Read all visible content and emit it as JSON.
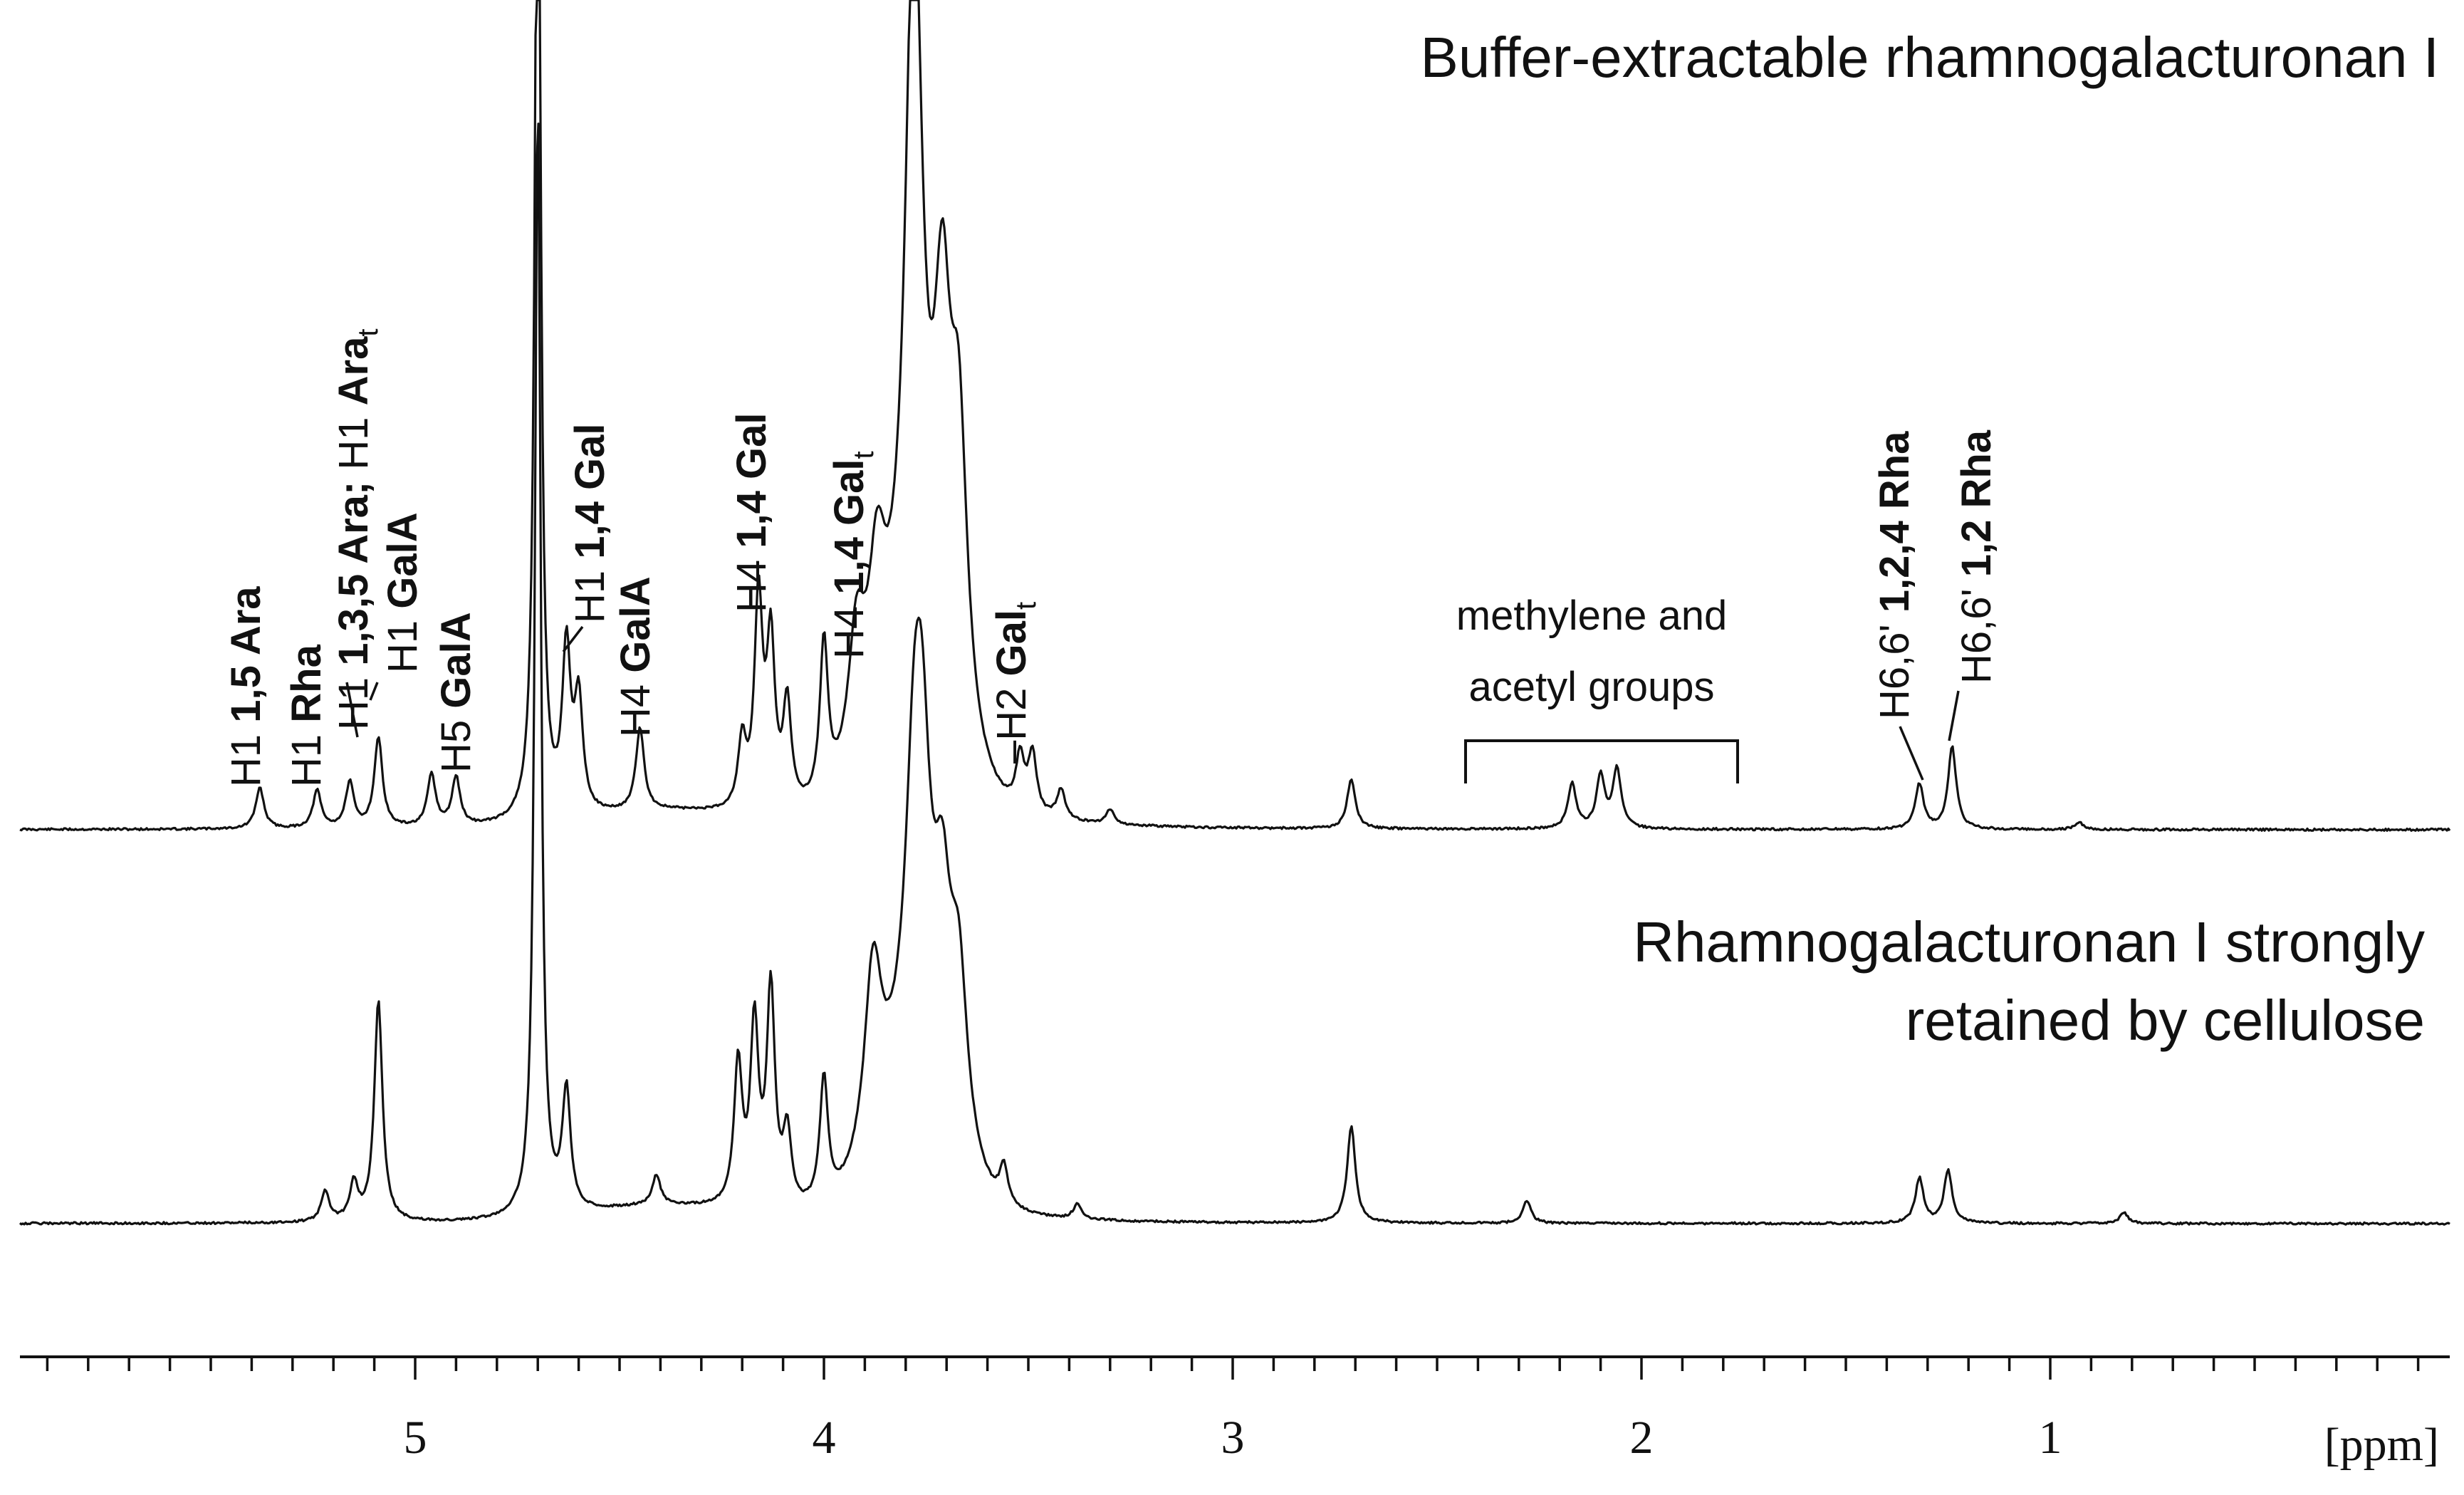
{
  "chart_data": {
    "type": "line",
    "x_unit_label": "[ppm]",
    "x_ticks": [
      5,
      4,
      3,
      2,
      1
    ],
    "x_range": [
      5.95,
      0.0
    ],
    "x_reversed": true,
    "grid": false,
    "spectra": [
      {
        "name": "Buffer-extractable rhamnogalacturonan I",
        "peaks": [
          {
            "ppm": 5.38,
            "intensity": 0.055
          },
          {
            "ppm": 5.24,
            "intensity": 0.05
          },
          {
            "ppm": 5.16,
            "intensity": 0.06
          },
          {
            "ppm": 5.09,
            "intensity": 0.12
          },
          {
            "ppm": 4.96,
            "intensity": 0.07
          },
          {
            "ppm": 4.9,
            "intensity": 0.065
          },
          {
            "ppm": 4.7,
            "intensity": 1.5
          },
          {
            "ppm": 4.63,
            "intensity": 0.22
          },
          {
            "ppm": 4.6,
            "intensity": 0.15
          },
          {
            "ppm": 4.45,
            "intensity": 0.11
          },
          {
            "ppm": 4.2,
            "intensity": 0.09
          },
          {
            "ppm": 4.16,
            "intensity": 0.28
          },
          {
            "ppm": 4.13,
            "intensity": 0.22
          },
          {
            "ppm": 4.09,
            "intensity": 0.14
          },
          {
            "ppm": 4.0,
            "intensity": 0.21
          },
          {
            "ppm": 3.92,
            "intensity": 0.18
          },
          {
            "ppm": 3.87,
            "intensity": 0.2
          },
          {
            "ppm": 3.78,
            "intensity": 1.0
          },
          {
            "ppm": 3.71,
            "intensity": 0.46
          },
          {
            "ppm": 3.67,
            "intensity": 0.38
          },
          {
            "ppm": 3.52,
            "intensity": 0.07
          },
          {
            "ppm": 3.49,
            "intensity": 0.08
          },
          {
            "ppm": 3.42,
            "intensity": 0.04
          },
          {
            "ppm": 3.3,
            "intensity": 0.02
          },
          {
            "ppm": 2.71,
            "intensity": 0.067
          },
          {
            "ppm": 2.17,
            "intensity": 0.06
          },
          {
            "ppm": 2.1,
            "intensity": 0.07
          },
          {
            "ppm": 2.06,
            "intensity": 0.08
          },
          {
            "ppm": 1.32,
            "intensity": 0.06
          },
          {
            "ppm": 1.24,
            "intensity": 0.11
          },
          {
            "ppm": 0.93,
            "intensity": 0.01
          }
        ]
      },
      {
        "name": "Rhamnogalacturonan I strongly retained by cellulose",
        "peaks": [
          {
            "ppm": 5.22,
            "intensity": 0.04
          },
          {
            "ppm": 5.15,
            "intensity": 0.05
          },
          {
            "ppm": 5.09,
            "intensity": 0.295
          },
          {
            "ppm": 4.7,
            "intensity": 1.5
          },
          {
            "ppm": 4.63,
            "intensity": 0.16
          },
          {
            "ppm": 4.41,
            "intensity": 0.04
          },
          {
            "ppm": 4.21,
            "intensity": 0.19
          },
          {
            "ppm": 4.17,
            "intensity": 0.24
          },
          {
            "ppm": 4.13,
            "intensity": 0.29
          },
          {
            "ppm": 4.09,
            "intensity": 0.1
          },
          {
            "ppm": 4.0,
            "intensity": 0.17
          },
          {
            "ppm": 3.88,
            "intensity": 0.24
          },
          {
            "ppm": 3.78,
            "intensity": 0.32
          },
          {
            "ppm": 3.76,
            "intensity": 0.34
          },
          {
            "ppm": 3.71,
            "intensity": 0.24
          },
          {
            "ppm": 3.67,
            "intensity": 0.22
          },
          {
            "ppm": 3.56,
            "intensity": 0.05
          },
          {
            "ppm": 3.38,
            "intensity": 0.02
          },
          {
            "ppm": 2.71,
            "intensity": 0.13
          },
          {
            "ppm": 2.28,
            "intensity": 0.03
          },
          {
            "ppm": 1.32,
            "intensity": 0.06
          },
          {
            "ppm": 1.25,
            "intensity": 0.07
          },
          {
            "ppm": 0.82,
            "intensity": 0.015
          }
        ]
      }
    ],
    "annotations": {
      "title_top": "Buffer-extractable rhamnogalacturonan I",
      "title_bottom_line1": "Rhamnogalacturonan I strongly",
      "title_bottom_line2": "retained by cellulose",
      "methylene_line1": "methylene and",
      "methylene_line2": "acetyl groups",
      "peak_labels": [
        {
          "ppm": 5.38,
          "pre": "H1 ",
          "bold": "1,5 Ara",
          "sub": ""
        },
        {
          "ppm": 5.24,
          "pre": "H1 ",
          "bold": "Rha",
          "sub": ""
        },
        {
          "ppm": 5.16,
          "pre": "H1 ",
          "bold": "1,3,5 Ara;",
          "mid": " H1 ",
          "bold2": "Ara",
          "sub": "t"
        },
        {
          "ppm": 5.09,
          "pre": "H1 ",
          "bold": "GalA",
          "sub": ""
        },
        {
          "ppm": 4.93,
          "pre": "H5 ",
          "bold": "GalA",
          "sub": ""
        },
        {
          "ppm": 4.63,
          "pre": "H1 ",
          "bold": "1,4 Gal",
          "sub": ""
        },
        {
          "ppm": 4.45,
          "pre": "H4 ",
          "bold": "GalA",
          "sub": ""
        },
        {
          "ppm": 4.16,
          "pre": "H4 ",
          "bold": "1,4 Gal",
          "sub": ""
        },
        {
          "ppm": 4.0,
          "pre": "H4 ",
          "bold": "1,4 Gal",
          "sub": "t"
        },
        {
          "ppm": 3.52,
          "pre": "H2 ",
          "bold": "Gal",
          "sub": "t"
        },
        {
          "ppm": 1.32,
          "pre": "H6,6' ",
          "bold": "1,2,4 Rha",
          "sub": ""
        },
        {
          "ppm": 1.24,
          "pre": "H6,6' ",
          "bold": "1,2 Rha",
          "sub": ""
        }
      ]
    }
  }
}
